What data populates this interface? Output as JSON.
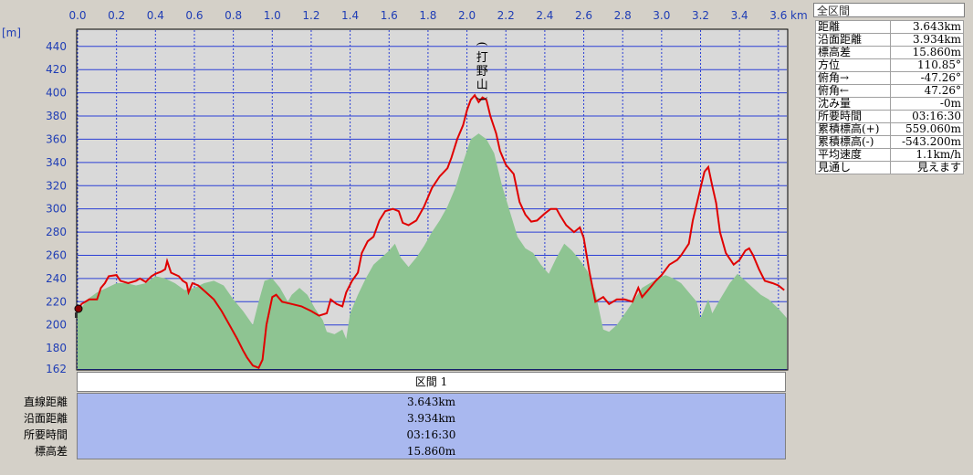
{
  "chart_data": {
    "type": "area",
    "xunit": "km",
    "yunit": "[m]",
    "xlim": [
      0.0,
      3.643
    ],
    "ylim": [
      162,
      454
    ],
    "x_ticks": [
      "0.0",
      "0.2",
      "0.4",
      "0.6",
      "0.8",
      "1.0",
      "1.2",
      "1.4",
      "1.6",
      "1.8",
      "2.0",
      "2.2",
      "2.4",
      "2.6",
      "2.8",
      "3.0",
      "3.2",
      "3.4",
      "3.6"
    ],
    "y_ticks": [
      162,
      180,
      200,
      220,
      240,
      260,
      280,
      300,
      320,
      340,
      360,
      380,
      400,
      420,
      440
    ],
    "grid": true,
    "peak_label": "(打野山)",
    "peak_x": 2.05,
    "series": [
      {
        "color": "#e00000",
        "points": [
          [
            0.0,
            212
          ],
          [
            0.02,
            218
          ],
          [
            0.06,
            222
          ],
          [
            0.1,
            222
          ],
          [
            0.12,
            232
          ],
          [
            0.14,
            236
          ],
          [
            0.16,
            242
          ],
          [
            0.2,
            243
          ],
          [
            0.22,
            238
          ],
          [
            0.26,
            236
          ],
          [
            0.3,
            238
          ],
          [
            0.32,
            240
          ],
          [
            0.35,
            237
          ],
          [
            0.38,
            242
          ],
          [
            0.4,
            244
          ],
          [
            0.43,
            246
          ],
          [
            0.45,
            248
          ],
          [
            0.46,
            255
          ],
          [
            0.48,
            245
          ],
          [
            0.52,
            242
          ],
          [
            0.54,
            238
          ],
          [
            0.56,
            236
          ],
          [
            0.57,
            228
          ],
          [
            0.59,
            236
          ],
          [
            0.62,
            234
          ],
          [
            0.66,
            228
          ],
          [
            0.7,
            222
          ],
          [
            0.74,
            212
          ],
          [
            0.78,
            200
          ],
          [
            0.82,
            188
          ],
          [
            0.85,
            178
          ],
          [
            0.87,
            172
          ],
          [
            0.9,
            165
          ],
          [
            0.93,
            163
          ],
          [
            0.95,
            170
          ],
          [
            0.97,
            200
          ],
          [
            1.0,
            224
          ],
          [
            1.02,
            226
          ],
          [
            1.05,
            220
          ],
          [
            1.1,
            218
          ],
          [
            1.15,
            216
          ],
          [
            1.2,
            212
          ],
          [
            1.24,
            208
          ],
          [
            1.28,
            210
          ],
          [
            1.3,
            222
          ],
          [
            1.33,
            218
          ],
          [
            1.36,
            216
          ],
          [
            1.38,
            228
          ],
          [
            1.41,
            238
          ],
          [
            1.44,
            245
          ],
          [
            1.46,
            262
          ],
          [
            1.49,
            272
          ],
          [
            1.52,
            276
          ],
          [
            1.55,
            290
          ],
          [
            1.58,
            298
          ],
          [
            1.62,
            300
          ],
          [
            1.65,
            298
          ],
          [
            1.67,
            288
          ],
          [
            1.7,
            286
          ],
          [
            1.74,
            290
          ],
          [
            1.78,
            302
          ],
          [
            1.82,
            318
          ],
          [
            1.86,
            328
          ],
          [
            1.9,
            335
          ],
          [
            1.92,
            344
          ],
          [
            1.95,
            360
          ],
          [
            1.98,
            372
          ],
          [
            2.0,
            385
          ],
          [
            2.02,
            394
          ],
          [
            2.04,
            398
          ],
          [
            2.06,
            392
          ],
          [
            2.08,
            396
          ],
          [
            2.1,
            394
          ],
          [
            2.12,
            380
          ],
          [
            2.15,
            365
          ],
          [
            2.17,
            350
          ],
          [
            2.2,
            338
          ],
          [
            2.24,
            330
          ],
          [
            2.27,
            306
          ],
          [
            2.3,
            295
          ],
          [
            2.33,
            289
          ],
          [
            2.36,
            290
          ],
          [
            2.4,
            296
          ],
          [
            2.43,
            300
          ],
          [
            2.46,
            300
          ],
          [
            2.48,
            294
          ],
          [
            2.51,
            286
          ],
          [
            2.55,
            280
          ],
          [
            2.58,
            284
          ],
          [
            2.6,
            275
          ],
          [
            2.63,
            245
          ],
          [
            2.66,
            220
          ],
          [
            2.7,
            224
          ],
          [
            2.73,
            218
          ],
          [
            2.77,
            222
          ],
          [
            2.81,
            222
          ],
          [
            2.85,
            220
          ],
          [
            2.88,
            232
          ],
          [
            2.9,
            224
          ],
          [
            2.94,
            232
          ],
          [
            2.97,
            238
          ],
          [
            3.0,
            243
          ],
          [
            3.04,
            252
          ],
          [
            3.08,
            256
          ],
          [
            3.1,
            260
          ],
          [
            3.14,
            270
          ],
          [
            3.16,
            290
          ],
          [
            3.2,
            318
          ],
          [
            3.22,
            332
          ],
          [
            3.24,
            336
          ],
          [
            3.26,
            320
          ],
          [
            3.28,
            305
          ],
          [
            3.3,
            280
          ],
          [
            3.33,
            262
          ],
          [
            3.37,
            252
          ],
          [
            3.4,
            256
          ],
          [
            3.43,
            264
          ],
          [
            3.45,
            266
          ],
          [
            3.47,
            260
          ],
          [
            3.5,
            248
          ],
          [
            3.53,
            238
          ],
          [
            3.57,
            236
          ],
          [
            3.6,
            234
          ],
          [
            3.63,
            230
          ]
        ]
      },
      {
        "color": "#8ec492",
        "points": [
          [
            0.0,
            210
          ],
          [
            0.05,
            222
          ],
          [
            0.1,
            228
          ],
          [
            0.15,
            232
          ],
          [
            0.2,
            236
          ],
          [
            0.25,
            236
          ],
          [
            0.3,
            234
          ],
          [
            0.35,
            236
          ],
          [
            0.4,
            242
          ],
          [
            0.45,
            240
          ],
          [
            0.5,
            236
          ],
          [
            0.55,
            230
          ],
          [
            0.6,
            232
          ],
          [
            0.65,
            236
          ],
          [
            0.7,
            238
          ],
          [
            0.75,
            234
          ],
          [
            0.8,
            222
          ],
          [
            0.85,
            212
          ],
          [
            0.9,
            200
          ],
          [
            0.93,
            220
          ],
          [
            0.96,
            238
          ],
          [
            1.0,
            240
          ],
          [
            1.04,
            232
          ],
          [
            1.08,
            220
          ],
          [
            1.1,
            226
          ],
          [
            1.14,
            232
          ],
          [
            1.18,
            226
          ],
          [
            1.22,
            214
          ],
          [
            1.26,
            204
          ],
          [
            1.28,
            194
          ],
          [
            1.32,
            192
          ],
          [
            1.36,
            196
          ],
          [
            1.38,
            188
          ],
          [
            1.4,
            210
          ],
          [
            1.44,
            226
          ],
          [
            1.48,
            240
          ],
          [
            1.52,
            252
          ],
          [
            1.56,
            258
          ],
          [
            1.6,
            264
          ],
          [
            1.63,
            270
          ],
          [
            1.66,
            258
          ],
          [
            1.7,
            250
          ],
          [
            1.74,
            258
          ],
          [
            1.78,
            268
          ],
          [
            1.82,
            280
          ],
          [
            1.86,
            290
          ],
          [
            1.9,
            302
          ],
          [
            1.94,
            318
          ],
          [
            1.98,
            340
          ],
          [
            2.02,
            360
          ],
          [
            2.06,
            365
          ],
          [
            2.1,
            360
          ],
          [
            2.14,
            348
          ],
          [
            2.18,
            320
          ],
          [
            2.22,
            298
          ],
          [
            2.26,
            276
          ],
          [
            2.3,
            266
          ],
          [
            2.34,
            262
          ],
          [
            2.38,
            252
          ],
          [
            2.42,
            244
          ],
          [
            2.46,
            258
          ],
          [
            2.5,
            270
          ],
          [
            2.54,
            264
          ],
          [
            2.58,
            256
          ],
          [
            2.62,
            246
          ],
          [
            2.66,
            228
          ],
          [
            2.7,
            196
          ],
          [
            2.73,
            194
          ],
          [
            2.77,
            200
          ],
          [
            2.82,
            212
          ],
          [
            2.86,
            222
          ],
          [
            2.9,
            232
          ],
          [
            2.94,
            236
          ],
          [
            2.98,
            240
          ],
          [
            3.02,
            243
          ],
          [
            3.06,
            240
          ],
          [
            3.1,
            236
          ],
          [
            3.14,
            228
          ],
          [
            3.18,
            220
          ],
          [
            3.2,
            206
          ],
          [
            3.24,
            222
          ],
          [
            3.26,
            210
          ],
          [
            3.3,
            222
          ],
          [
            3.35,
            236
          ],
          [
            3.39,
            244
          ],
          [
            3.43,
            238
          ],
          [
            3.47,
            232
          ],
          [
            3.51,
            226
          ],
          [
            3.55,
            222
          ],
          [
            3.6,
            214
          ],
          [
            3.643,
            206
          ]
        ]
      }
    ]
  },
  "info_panel": {
    "title": "全区間",
    "rows": [
      {
        "label": "距離",
        "value": "3.643km"
      },
      {
        "label": "沿面距離",
        "value": "3.934km"
      },
      {
        "label": "標高差",
        "value": "15.860m"
      },
      {
        "label": "方位",
        "value": "110.85°"
      },
      {
        "label": "俯角→",
        "value": "-47.26°"
      },
      {
        "label": "俯角←",
        "value": "47.26°"
      },
      {
        "label": "沈み量",
        "value": "-0m"
      },
      {
        "label": "所要時間",
        "value": "03:16:30"
      },
      {
        "label": "累積標高(+)",
        "value": "559.060m"
      },
      {
        "label": "累積標高(-)",
        "value": "-543.200m"
      },
      {
        "label": "平均速度",
        "value": "1.1km/h"
      },
      {
        "label": "見通し",
        "value": "見えます"
      }
    ]
  },
  "segment_table": {
    "header": "区間 1",
    "rows": [
      {
        "label": "直線距離",
        "value": "3.643km"
      },
      {
        "label": "沿面距離",
        "value": "3.934km"
      },
      {
        "label": "所要時間",
        "value": "03:16:30"
      },
      {
        "label": "標高差",
        "value": "15.860m"
      }
    ]
  }
}
